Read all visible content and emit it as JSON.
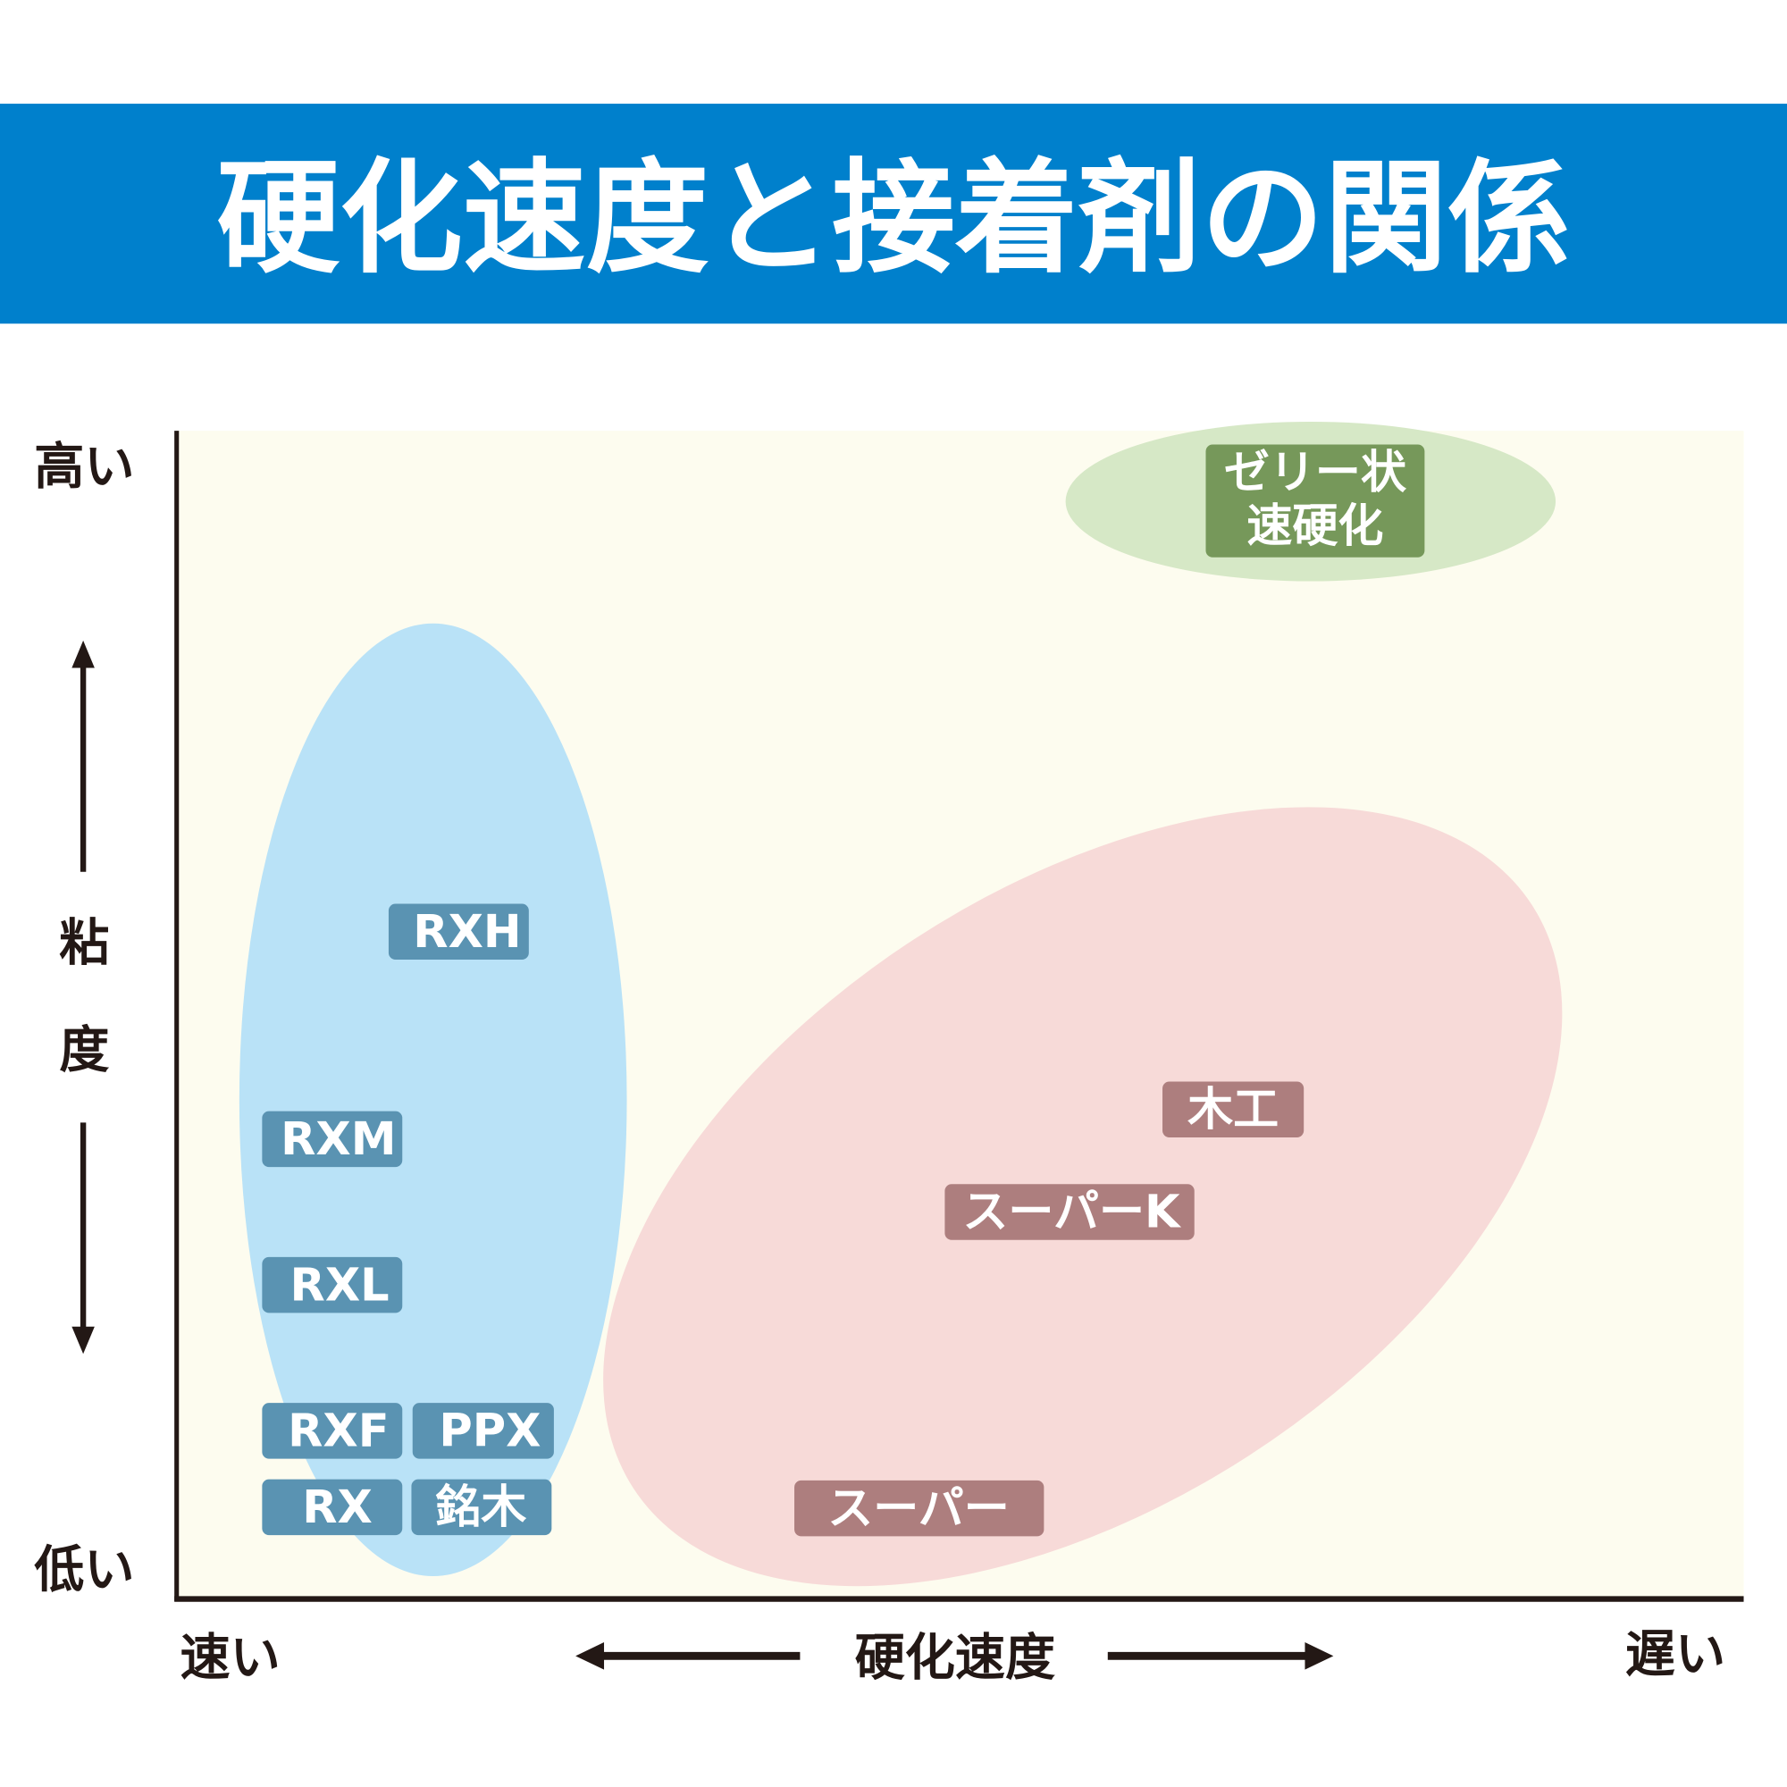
{
  "title": "硬化速度と接着剤の関係",
  "y_axis": {
    "high": "高い",
    "label_1": "粘",
    "label_2": "度",
    "low": "低い"
  },
  "x_axis": {
    "fast": "速い",
    "label": "硬化速度",
    "slow": "遅い"
  },
  "groups": {
    "blue": {
      "color": "#B9E2F7",
      "label_color": "#5A93B2",
      "items": [
        "RXH",
        "RXM",
        "RXL",
        "RXF",
        "PPX",
        "RX",
        "銘木"
      ]
    },
    "pink": {
      "color": "#F7DAD8",
      "label_color": "#AD7E7E",
      "items": [
        "木工",
        "スーパーK",
        "スーパー"
      ]
    },
    "green": {
      "color": "#D6E8C6",
      "label_color": "#76985A",
      "items": [
        "ゼリー状",
        "速硬化"
      ]
    }
  },
  "colors": {
    "title_bar": "#0080CC",
    "plot_bg": "#FDFCEF",
    "axis": "#231815"
  }
}
